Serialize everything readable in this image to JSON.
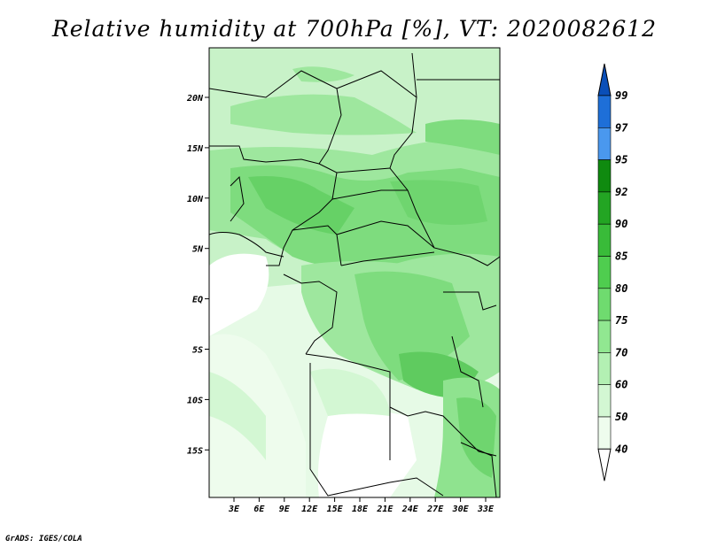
{
  "title": "Relative humidity at 700hPa [%], VT: 2020082612",
  "footer": "GrADS: IGES/COLA",
  "lat_labels": [
    "20N",
    "15N",
    "10N",
    "5N",
    "EQ",
    "5S",
    "10S",
    "15S"
  ],
  "lon_labels": [
    "3E",
    "6E",
    "9E",
    "12E",
    "15E",
    "18E",
    "21E",
    "24E",
    "27E",
    "30E",
    "33E"
  ],
  "colorbar": {
    "labels": [
      "99",
      "97",
      "95",
      "92",
      "90",
      "85",
      "80",
      "75",
      "70",
      "60",
      "50",
      "40"
    ],
    "colors": [
      "#0a4fb8",
      "#1e6fd8",
      "#4a98ee",
      "#0f8a0f",
      "#23a523",
      "#39bb39",
      "#4fcd4f",
      "#6fdb6f",
      "#91e791",
      "#b3f0b3",
      "#d3f7d3",
      "#eefced",
      "#ffffff"
    ]
  },
  "map": {
    "field": "relative humidity 700hPa",
    "units": "%"
  }
}
